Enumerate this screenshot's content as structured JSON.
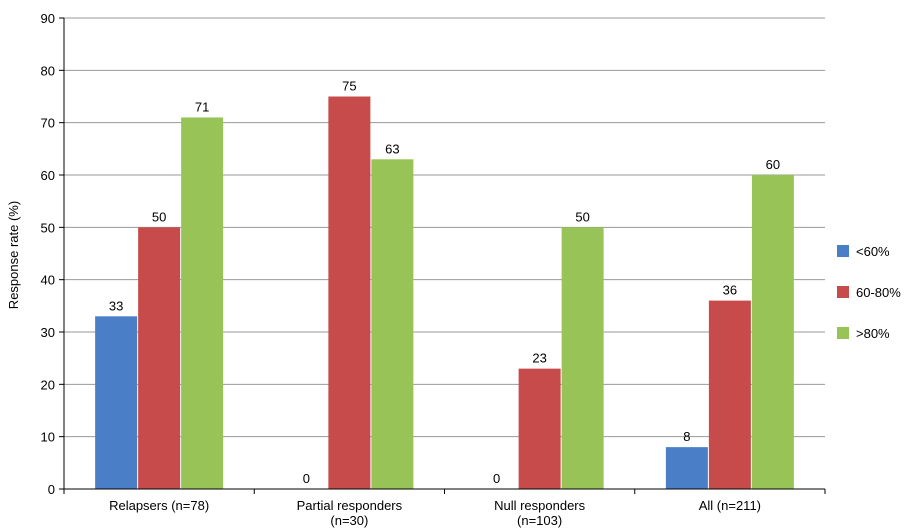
{
  "chart_data": {
    "type": "bar",
    "title": "",
    "xlabel": "",
    "ylabel": "Response rate (%)",
    "ylim": [
      0,
      90
    ],
    "yticks": [
      0,
      10,
      20,
      30,
      40,
      50,
      60,
      70,
      80,
      90
    ],
    "grid": true,
    "legend_position": "right",
    "categories": [
      [
        "Relapsers (n=78)"
      ],
      [
        "Partial responders",
        "(n=30)"
      ],
      [
        "Null responders",
        "(n=103)"
      ],
      [
        "All (n=211)"
      ]
    ],
    "series": [
      {
        "name": "<60%",
        "color": "#4a7fc7",
        "values": [
          33,
          0,
          0,
          8
        ]
      },
      {
        "name": "60-80%",
        "color": "#c84b4b",
        "values": [
          50,
          75,
          23,
          36
        ]
      },
      {
        "name": ">80%",
        "color": "#98c457",
        "values": [
          71,
          63,
          50,
          60
        ]
      }
    ]
  }
}
